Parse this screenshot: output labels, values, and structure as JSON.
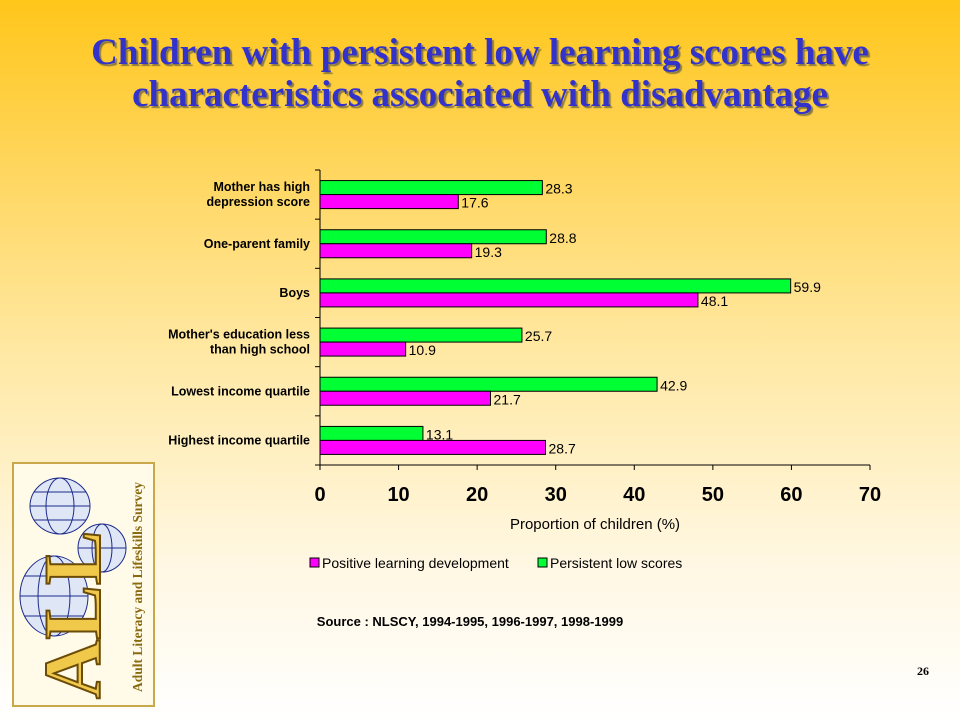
{
  "slide": {
    "title": "Children with persistent low learning scores have characteristics associated with disadvantage",
    "source": "Source : NLSCY, 1994-1995, 1996-1997, 1998-1999",
    "page_number": "26",
    "logo_text": "Adult Literacy and Lifeskills Survey",
    "logo_letters": "ALL"
  },
  "colors": {
    "title": "#3333cc",
    "positive": "#ff00ff",
    "persistent": "#00ff33"
  },
  "chart_data": {
    "type": "bar",
    "orientation": "horizontal",
    "categories": [
      [
        "Mother has high",
        "depression score"
      ],
      [
        "One-parent family"
      ],
      [
        "Boys"
      ],
      [
        "Mother's education less",
        "than high school"
      ],
      [
        "Lowest income quartile"
      ],
      [
        "Highest income quartile"
      ]
    ],
    "series": [
      {
        "name": "Positive learning development",
        "color": "#ff00ff",
        "values": [
          17.6,
          19.3,
          48.1,
          10.9,
          21.7,
          28.7
        ]
      },
      {
        "name": "Persistent low scores",
        "color": "#00ff33",
        "values": [
          28.3,
          28.8,
          59.9,
          25.7,
          42.9,
          13.1
        ]
      }
    ],
    "xlabel": "Proportion of children (%)",
    "ylabel": "",
    "xlim": [
      0,
      70
    ],
    "xticks": [
      0,
      10,
      20,
      30,
      40,
      50,
      60,
      70
    ],
    "grid": false,
    "legend": "bottom"
  }
}
